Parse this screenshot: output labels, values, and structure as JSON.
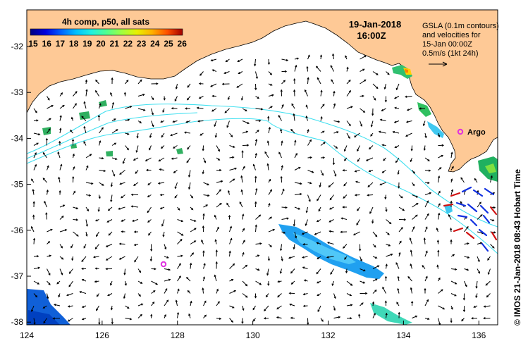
{
  "colorbar": {
    "title": "4h comp, p50, all sats",
    "ticks": [
      "15",
      "16",
      "17",
      "18",
      "19",
      "20",
      "21",
      "22",
      "23",
      "24",
      "25",
      "26"
    ],
    "colors": [
      "#00007f",
      "#0000d0",
      "#0040ff",
      "#0090ff",
      "#00d8ff",
      "#30ffc8",
      "#80ff80",
      "#c8ff30",
      "#ffd800",
      "#ff8c00",
      "#ff3000",
      "#a00000"
    ]
  },
  "datetime": {
    "date": "19-Jan-2018",
    "time": "16:00Z"
  },
  "legend": {
    "line1": "GSLA (0.1m contours)",
    "line2": "and velocities for",
    "line3": "15-Jan 00:00Z",
    "line4": "0.5m/s (1kt 24h)"
  },
  "labels": {
    "argo": "Argo"
  },
  "axes": {
    "x_ticks": [
      "124",
      "126",
      "128",
      "130",
      "132",
      "134",
      "136"
    ],
    "y_ticks": [
      "-32",
      "-33",
      "-34",
      "-35",
      "-36",
      "-37",
      "-38"
    ]
  },
  "credit": "© IMOS 21-Jan-2018 08:43 Hobart Time",
  "colors": {
    "land": "#fec996",
    "contour": "#40e0f0",
    "argo": "#e030e0",
    "arrow": "#000000"
  }
}
